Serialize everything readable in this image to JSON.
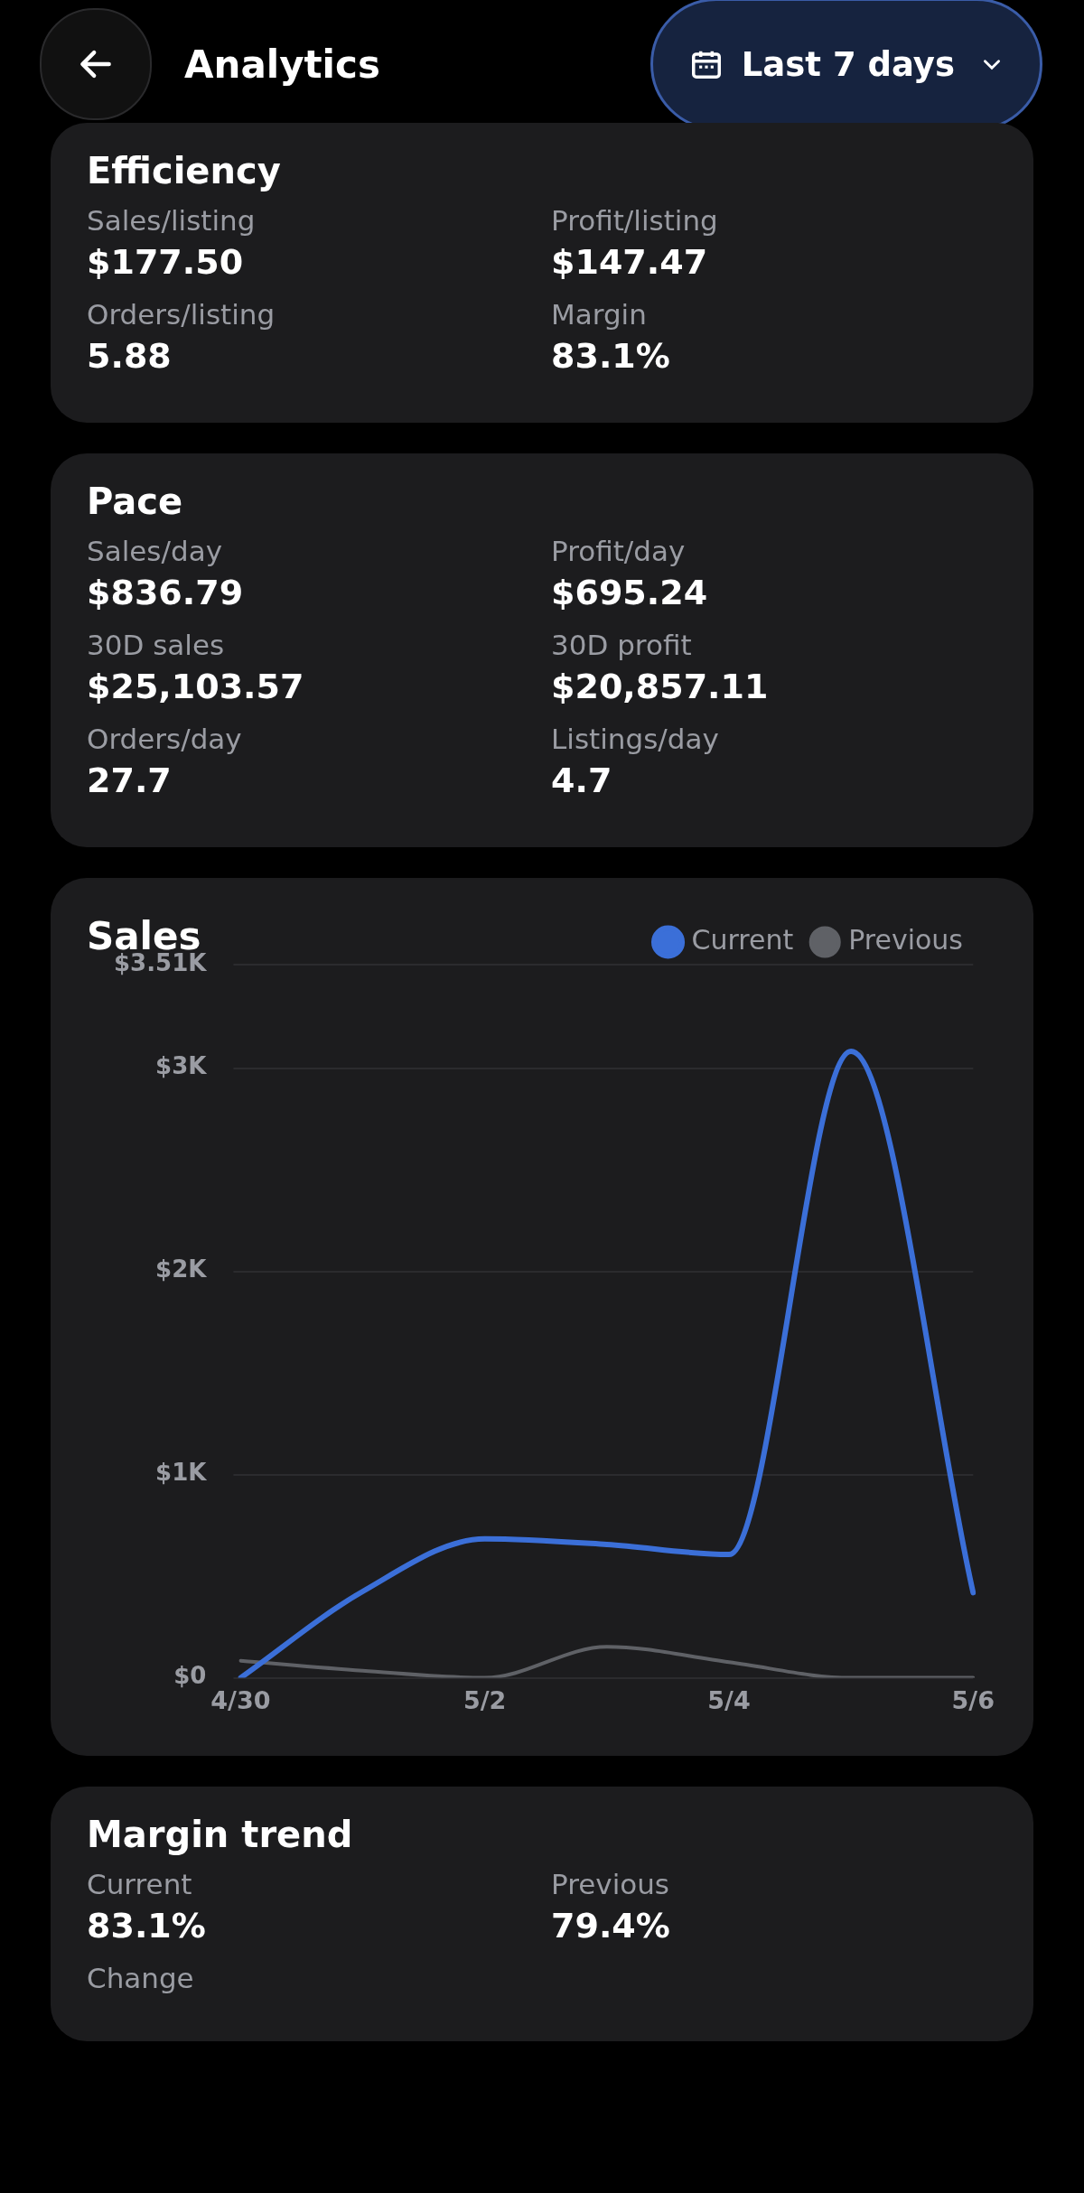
{
  "chart_data": [
    {
      "type": "other",
      "title": "Analytics",
      "annotations": [
        "Last 7 days"
      ]
    },
    {
      "type": "other",
      "title": "Efficiency",
      "annotations": [
        "Sales/listing",
        "$177.50",
        "Profit/listing",
        "$147.47",
        "Orders/listing",
        "5.88",
        "Margin",
        "83.1%"
      ]
    },
    {
      "type": "other",
      "title": "Pace",
      "annotations": [
        "Sales/day",
        "$836.79",
        "Profit/day",
        "$695.24",
        "30D sales",
        "$25,103.57",
        "30D profit",
        "$20,857.11",
        "Orders/day",
        "27.7",
        "Listings/day",
        "4.7"
      ]
    },
    {
      "type": "line",
      "title": "Sales",
      "categories": [
        "4/30",
        null,
        "5/2",
        null,
        "5/4",
        null,
        "5/6"
      ],
      "series": [
        {
          "name": "Current",
          "color": "#3b6fd8",
          "values": [
            0,
            425,
            684,
            656,
            607,
            3083,
            419
          ]
        },
        {
          "name": "Previous",
          "color": "#5f6166",
          "values": [
            84,
            35,
            0,
            153,
            77,
            0,
            0
          ]
        }
      ],
      "ylim": [
        0,
        3510
      ],
      "yticks": [
        {
          "value": 0,
          "label": "$0"
        },
        {
          "value": 1000,
          "label": "$1K"
        },
        {
          "value": 2000,
          "label": "$2K"
        },
        {
          "value": 3000,
          "label": "$3K"
        },
        {
          "value": 3510,
          "label": "$3.51K"
        }
      ],
      "grid": "y",
      "legend": "top right",
      "marker": "none",
      "line_style": "solid"
    },
    {
      "type": "other",
      "title": "Margin trend",
      "annotations": [
        "Current",
        "83.1%",
        "Previous",
        "79.4%",
        "Change"
      ]
    }
  ]
}
